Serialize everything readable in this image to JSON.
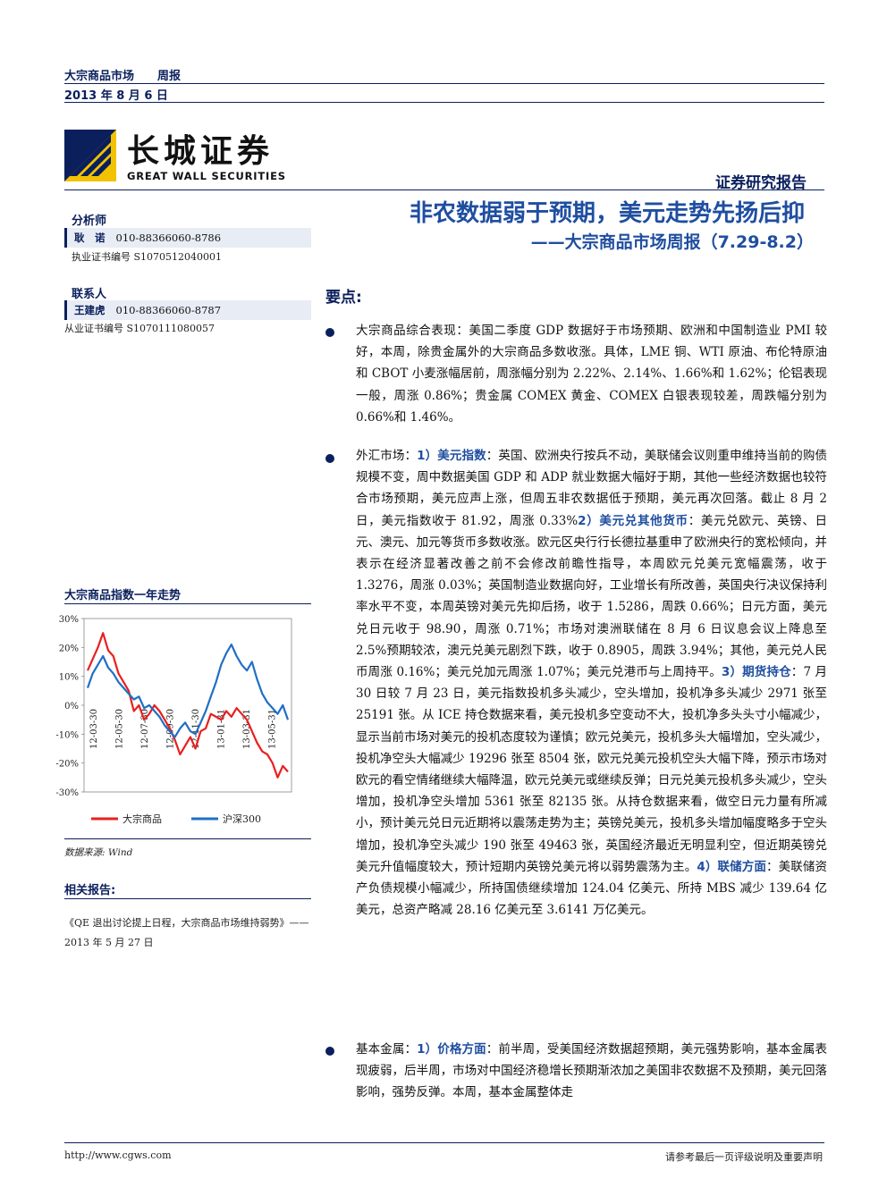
{
  "header": {
    "category": "大宗商品市场",
    "type": "周报",
    "date": "2013 年 8 月 6 日"
  },
  "logo": {
    "cn": "长城证券",
    "en": "GREAT WALL SECURITIES"
  },
  "report_type": "证券研究报告",
  "title": {
    "main": "非农数据弱于预期，美元走势先扬后抑",
    "sub": "——大宗商品市场周报（7.29-8.2）"
  },
  "sidebar": {
    "analyst_label": "分析师",
    "analyst_name": "耿　诺",
    "analyst_phone": "010-88366060-8786",
    "analyst_cert": "执业证书编号 S1070512040001",
    "contact_label": "联系人",
    "contact_name": "王建虎",
    "contact_phone": "010-88366060-8787",
    "contact_cert": "从业证书编号 S1070111080057"
  },
  "chart": {
    "title": "大宗商品指数一年走势",
    "source": "数据来源: Wind"
  },
  "chart_data": {
    "type": "line",
    "title": "大宗商品指数一年走势",
    "xlabel": "",
    "ylabel": "",
    "ylim": [
      -30,
      30
    ],
    "yticks": [
      "30%",
      "20%",
      "10%",
      "0%",
      "-10%",
      "-20%",
      "-30%"
    ],
    "xticks": [
      "12-03-30",
      "12-05-30",
      "12-07-30",
      "12-09-30",
      "12-11-30",
      "13-01-31",
      "13-03-31",
      "13-05-31"
    ],
    "legend_position": "bottom",
    "series": [
      {
        "name": "大宗商品",
        "color": "#e8201e",
        "values": [
          12,
          16,
          20,
          25,
          19,
          17,
          11,
          8,
          5,
          -2,
          0,
          -5,
          -3,
          0,
          -2,
          -5,
          -8,
          -12,
          -17,
          -14,
          -11,
          -15,
          -9,
          -8,
          -3,
          -4,
          -5,
          -2,
          -4,
          -1,
          -3,
          -5,
          -9,
          -13,
          -16,
          -17,
          -20,
          -25,
          -21,
          -23
        ]
      },
      {
        "name": "沪深300",
        "color": "#1f6fc4",
        "values": [
          6,
          11,
          14,
          17,
          13,
          11,
          8,
          6,
          4,
          2,
          3,
          -1,
          0,
          -2,
          -4,
          -7,
          -9,
          -11,
          -8,
          -6,
          -9,
          -10,
          -6,
          -2,
          3,
          8,
          14,
          18,
          21,
          17,
          14,
          12,
          15,
          9,
          4,
          1,
          -1,
          -3,
          0,
          -5
        ]
      }
    ]
  },
  "related": {
    "title": "相关报告:",
    "text": "《QE 退出讨论提上日程，大宗商品市场维持弱势》——2013 年 5 月 27 日"
  },
  "keypoints_title": "要点:",
  "p1": {
    "text": "大宗商品综合表现：美国二季度 GDP 数据好于市场预期、欧洲和中国制造业 PMI 较好，本周，除贵金属外的大宗商品多数收涨。具体，LME 铜、WTI 原油、布伦特原油和 CBOT 小麦涨幅居前，周涨幅分别为 2.22%、2.14%、1.66%和 1.62%；伦铝表现一般，周涨 0.86%；贵金属 COMEX 黄金、COMEX 白银表现较差，周跌幅分别为 0.66%和 1.46%。"
  },
  "p2": {
    "lead": "外汇市场：",
    "h1": "1）美元指数",
    "t1": "：英国、欧洲央行按兵不动，美联储会议则重申维持当前的购债规模不变，周中数据美国 GDP 和 ADP 就业数据大幅好于期，其他一些经济数据也较符合市场预期，美元应声上涨，但周五非农数据低于预期，美元再次回落。截止 8 月 2 日，美元指数收于 81.92，周涨 0.33%",
    "h2": "2）美元兑其他货币",
    "t2": "：美元兑欧元、英镑、日元、澳元、加元等货币多数收涨。欧元区央行行长德拉基重申了欧洲央行的宽松倾向，并表示在经济显著改善之前不会修改前瞻性指导，本周欧元兑美元宽幅震荡，收于 1.3276，周涨 0.03%；英国制造业数据向好，工业增长有所改善，英国央行决议保持利率水平不变，本周英镑对美元先抑后扬，收于 1.5286，周跌 0.66%；日元方面，美元兑日元收于 98.90，周涨 0.71%；市场对澳洲联储在 8 月 6 日议息会议上降息至 2.5%预期较浓，澳元兑美元剧烈下跌，收于 0.8905，周跌 3.94%；其他，美元兑人民币周涨 0.16%；美元兑加元周涨 1.07%；美元兑港币与上周持平。",
    "h3": "3）期货持仓",
    "t3": "：7 月 30 日较 7 月 23 日，美元指数投机多头减少，空头增加，投机净多头减少 2971 张至 25191 张。从 ICE 持仓数据来看，美元投机多空变动不大，投机净多头头寸小幅减少，显示当前市场对美元的投机态度较为谨慎；欧元兑美元，投机多头大幅增加，空头减少，投机净空头大幅减少 19296 张至 8504 张，欧元兑美元投机空头大幅下降，预示市场对欧元的看空情绪继续大幅降温，欧元兑美元或继续反弹；日元兑美元投机多头减少，空头增加，投机净空头增加 5361 张至 82135 张。从持仓数据来看，做空日元力量有所减小，预计美元兑日元近期将以震荡走势为主；英镑兑美元，投机多头增加幅度略多于空头增加，投机净空头减少 190 张至 49463 张，英国经济最近无明显利空，但近期英镑兑美元升值幅度较大，预计短期内英镑兑美元将以弱势震荡为主。",
    "h4": "4）联储方面",
    "t4": "：美联储资产负债规模小幅减少，所持国债继续增加 124.04 亿美元、所持 MBS 减少 139.64 亿美元，总资产略减 28.16 亿美元至 3.6141 万亿美元。"
  },
  "p3": {
    "lead": "基本金属：",
    "h1": "1）价格方面",
    "t1": "：前半周，受美国经济数据超预期，美元强势影响，基本金属表现疲弱，后半周，市场对中国经济稳增长预期渐浓加之美国非农数据不及预期，美元回落影响，强势反弹。本周，基本金属整体走"
  },
  "footer": {
    "url": "http://www.cgws.com",
    "note": "请参考最后一页评级说明及重要声明"
  }
}
